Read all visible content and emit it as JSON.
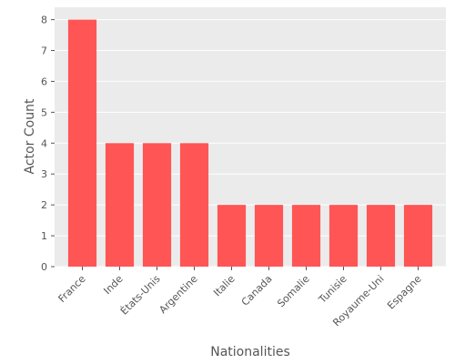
{
  "chart_data": {
    "type": "bar",
    "title": "",
    "xlabel": "Nationalities",
    "ylabel": "Actor Count",
    "categories": [
      "France",
      "Inde",
      "États-Unis",
      "Argentine",
      "Italie",
      "Canada",
      "Somalie",
      "Tunisie",
      "Royaume-Uni",
      "Espagne"
    ],
    "values": [
      8,
      4,
      4,
      4,
      2,
      2,
      2,
      2,
      2,
      2
    ],
    "ylim": [
      0,
      8.4
    ],
    "yticks": [
      0,
      1,
      2,
      3,
      4,
      5,
      6,
      7,
      8
    ],
    "grid": true,
    "bar_color": "#ff5555",
    "background_color": "#ebebeb",
    "grid_color": "#ffffff"
  }
}
